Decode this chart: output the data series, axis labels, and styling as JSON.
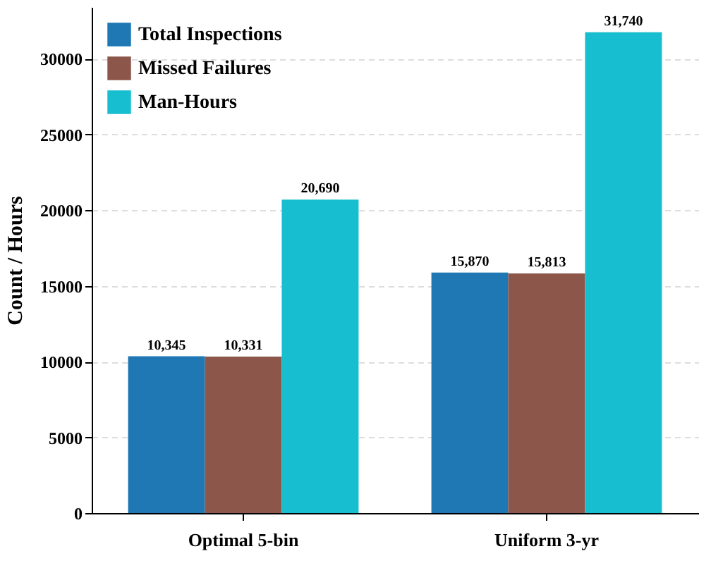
{
  "chart_data": {
    "type": "bar",
    "ylabel": "Count / Hours",
    "categories": [
      "Optimal 5-bin",
      "Uniform 3-yr"
    ],
    "series": [
      {
        "name": "Total Inspections",
        "color": "#1f77b4",
        "values": [
          10345,
          15870
        ],
        "value_labels": [
          "10,345",
          "15,870"
        ]
      },
      {
        "name": "Missed Failures",
        "color": "#8c564b",
        "values": [
          10331,
          15813
        ],
        "value_labels": [
          "10,331",
          "15,813"
        ]
      },
      {
        "name": "Man-Hours",
        "color": "#17becf",
        "values": [
          20690,
          31740
        ],
        "value_labels": [
          "20,690",
          "31,740"
        ]
      }
    ],
    "ylim": [
      0,
      33400
    ],
    "yticks": [
      0,
      5000,
      10000,
      15000,
      20000,
      25000,
      30000
    ],
    "grid": "y",
    "legend": "top left"
  }
}
